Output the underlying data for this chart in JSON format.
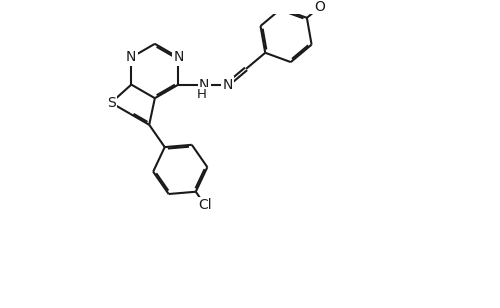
{
  "background_color": "#ffffff",
  "line_color": "#1a1a1a",
  "line_width": 1.5,
  "font_size": 10,
  "figsize": [
    5.0,
    3.08
  ],
  "dpi": 100,
  "xlim": [
    -0.5,
    10.5
  ],
  "ylim": [
    -4.2,
    5.5
  ]
}
